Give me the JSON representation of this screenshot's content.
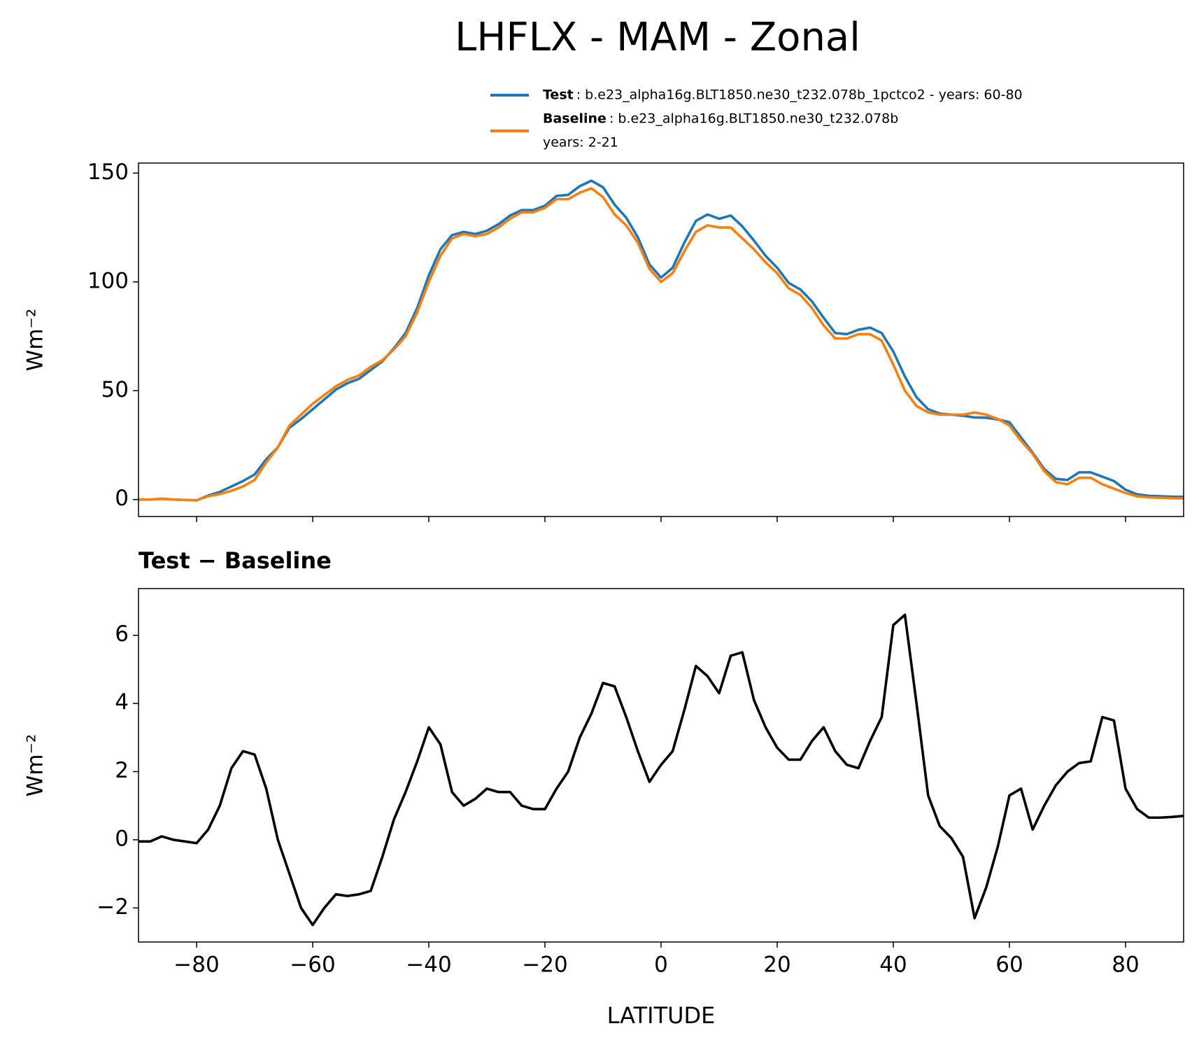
{
  "title": "LHFLX - MAM - Zonal",
  "chart_data": [
    {
      "type": "line",
      "ylabel": "Wm⁻²",
      "x": [
        -90,
        -88,
        -86,
        -84,
        -82,
        -80,
        -78,
        -76,
        -74,
        -72,
        -70,
        -68,
        -66,
        -64,
        -62,
        -60,
        -58,
        -56,
        -54,
        -52,
        -50,
        -48,
        -46,
        -44,
        -42,
        -40,
        -38,
        -36,
        -34,
        -32,
        -30,
        -28,
        -26,
        -24,
        -22,
        -20,
        -18,
        -16,
        -14,
        -12,
        -10,
        -8,
        -6,
        -4,
        -2,
        0,
        2,
        4,
        6,
        8,
        10,
        12,
        14,
        16,
        18,
        20,
        22,
        24,
        26,
        28,
        30,
        32,
        34,
        36,
        38,
        40,
        42,
        44,
        46,
        48,
        50,
        52,
        54,
        56,
        58,
        60,
        62,
        64,
        66,
        68,
        70,
        72,
        74,
        76,
        78,
        80,
        82,
        84,
        86,
        88,
        90
      ],
      "series": [
        {
          "name": "Test",
          "color": "#1f77b4",
          "legend_lines": [
            ": b.e23_alpha16g.BLT1850.ne30_t232.078b_1pctco2 - years: 60-80"
          ],
          "values": [
            0,
            0,
            0.4,
            0,
            -0.2,
            -0.4,
            1.8,
            3.5,
            6,
            8.5,
            11.5,
            18.5,
            24,
            33,
            37,
            41.5,
            46,
            50.5,
            53.5,
            55.5,
            59.5,
            63.5,
            69.5,
            76.5,
            88,
            103,
            115,
            121.5,
            123,
            122,
            123.5,
            126.5,
            130.5,
            133,
            133,
            135,
            139.5,
            140,
            144,
            146.5,
            143.5,
            135.5,
            129.5,
            120.5,
            108,
            102,
            106.5,
            118,
            128,
            131,
            129,
            130.5,
            125.5,
            119,
            112,
            106.5,
            99.5,
            96.5,
            91,
            83.5,
            76.5,
            76,
            78,
            79,
            76.5,
            68,
            56.5,
            47,
            41.5,
            39.5,
            39,
            38.5,
            37.7,
            37.6,
            36.8,
            35.5,
            28.5,
            21.5,
            14,
            9.5,
            9,
            12.5,
            12.5,
            10.5,
            8.5,
            4.5,
            2.4,
            1.7,
            1.5,
            1.3,
            1.2
          ]
        },
        {
          "name": "Baseline",
          "color": "#ff7f0e",
          "legend_lines": [
            ": b.e23_alpha16g.BLT1850.ne30_t232.078b",
            "years: 2-21"
          ],
          "values": [
            0,
            0,
            0.3,
            0,
            -0.2,
            -0.3,
            1.5,
            2.5,
            4,
            6,
            9,
            17,
            24,
            34,
            39,
            44,
            48,
            52,
            55,
            57,
            61,
            64,
            69,
            75,
            86,
            100,
            112,
            120,
            122,
            121,
            122,
            125,
            129,
            132,
            132,
            134,
            138,
            138,
            141,
            143,
            139,
            131,
            126,
            118,
            106,
            100,
            104,
            114,
            123,
            126,
            125,
            125,
            120,
            115,
            109,
            104,
            97,
            94,
            88,
            80,
            74,
            74,
            76,
            76,
            73,
            62,
            50,
            43,
            40,
            39,
            39,
            39,
            40,
            39,
            37,
            34,
            27,
            21,
            13,
            8,
            7,
            10,
            10,
            7,
            5,
            3,
            1.5,
            1,
            0.8,
            0.6,
            0.5
          ]
        }
      ],
      "xlim": [
        -90,
        90
      ],
      "xticks": [
        -80,
        -60,
        -40,
        -20,
        0,
        20,
        40,
        60,
        80
      ],
      "ylim": [
        -7.8,
        154.6
      ],
      "yticks": [
        0,
        50,
        100,
        150
      ]
    },
    {
      "type": "line",
      "title": "Test − Baseline",
      "ylabel": "Wm⁻²",
      "xlabel": "LATITUDE",
      "x": [
        -90,
        -88,
        -86,
        -84,
        -82,
        -80,
        -78,
        -76,
        -74,
        -72,
        -70,
        -68,
        -66,
        -64,
        -62,
        -60,
        -58,
        -56,
        -54,
        -52,
        -50,
        -48,
        -46,
        -44,
        -42,
        -40,
        -38,
        -36,
        -34,
        -32,
        -30,
        -28,
        -26,
        -24,
        -22,
        -20,
        -18,
        -16,
        -14,
        -12,
        -10,
        -8,
        -6,
        -4,
        -2,
        0,
        2,
        4,
        6,
        8,
        10,
        12,
        14,
        16,
        18,
        20,
        22,
        24,
        26,
        28,
        30,
        32,
        34,
        36,
        38,
        40,
        42,
        44,
        46,
        48,
        50,
        52,
        54,
        56,
        58,
        60,
        62,
        64,
        66,
        68,
        70,
        72,
        74,
        76,
        78,
        80,
        82,
        84,
        86,
        88,
        90
      ],
      "series": [
        {
          "color": "#000000",
          "values": [
            -0.05,
            -0.05,
            0.1,
            0,
            -0.05,
            -0.1,
            0.3,
            1.0,
            2.1,
            2.6,
            2.5,
            1.5,
            0,
            -1.0,
            -2.0,
            -2.5,
            -2.0,
            -1.6,
            -1.65,
            -1.6,
            -1.5,
            -0.5,
            0.6,
            1.4,
            2.3,
            3.3,
            2.8,
            1.4,
            1.0,
            1.2,
            1.5,
            1.4,
            1.4,
            1.0,
            0.9,
            0.9,
            1.5,
            2.0,
            3.0,
            3.7,
            4.6,
            4.5,
            3.6,
            2.6,
            1.7,
            2.2,
            2.6,
            3.8,
            5.1,
            4.8,
            4.3,
            5.4,
            5.5,
            4.1,
            3.3,
            2.7,
            2.35,
            2.35,
            2.9,
            3.3,
            2.6,
            2.2,
            2.1,
            2.9,
            3.6,
            6.3,
            6.6,
            4.0,
            1.3,
            0.4,
            0.05,
            -0.5,
            -2.3,
            -1.4,
            -0.2,
            1.3,
            1.5,
            0.3,
            1.0,
            1.6,
            2.0,
            2.25,
            2.3,
            3.6,
            3.5,
            1.5,
            0.9,
            0.65,
            0.65,
            0.67,
            0.7
          ]
        }
      ],
      "xlim": [
        -90,
        90
      ],
      "xticks": [
        {
          "value": -80,
          "label": "−80"
        },
        {
          "value": -60,
          "label": "−60"
        },
        {
          "value": -40,
          "label": "−40"
        },
        {
          "value": -20,
          "label": "−20"
        },
        0,
        20,
        40,
        60,
        80
      ],
      "ylim": [
        -3,
        7.37
      ],
      "yticks": [
        {
          "value": -2,
          "label": "−2"
        },
        0,
        2,
        4,
        6
      ]
    }
  ]
}
